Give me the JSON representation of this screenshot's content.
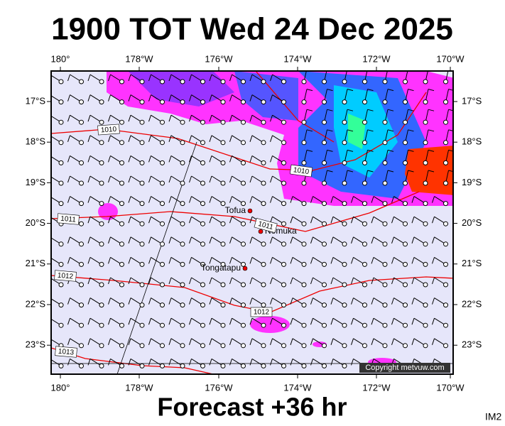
{
  "header": {
    "title": "1900 TOT Wed 24 Dec 2025",
    "subtitle": "Forecast +36 hr",
    "code": "IM2"
  },
  "map": {
    "lon_labels": [
      "180°",
      "178°W",
      "176°W",
      "174°W",
      "172°W",
      "170°W"
    ],
    "lat_labels": [
      "17°S",
      "18°S",
      "19°S",
      "20°S",
      "21°S",
      "22°S",
      "23°S"
    ],
    "places": [
      "Tofua",
      "Nomuka",
      "Tongatapu"
    ],
    "isobar_labels": [
      "1010",
      "1010",
      "1011",
      "1011",
      "1012",
      "1012",
      "1013"
    ],
    "copyright": "Copyright metvuw.com"
  }
}
